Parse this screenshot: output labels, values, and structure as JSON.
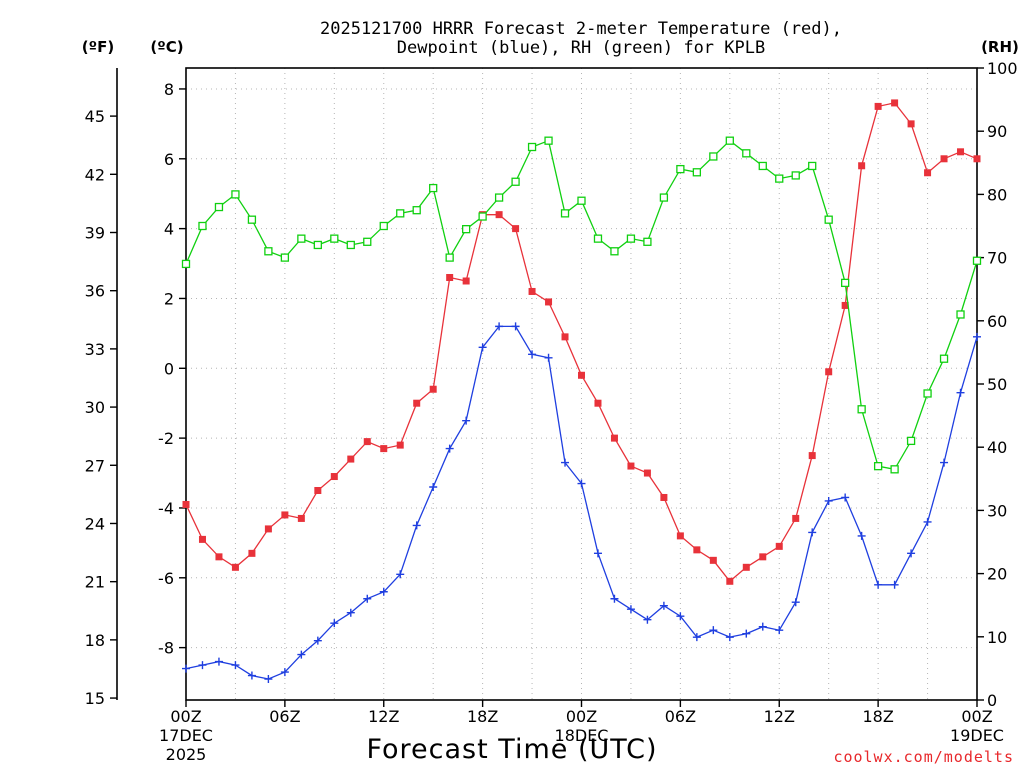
{
  "chart_data": {
    "type": "line",
    "title_line1": "2025121700 HRRR Forecast 2-meter Temperature (red),",
    "title_line2": "Dewpoint (blue), RH (green) for KPLB",
    "left_outer_unit": "(ºF)",
    "left_inner_unit": "(ºC)",
    "right_unit": "(RH)",
    "xlabel": "Forecast Time (UTC)",
    "credit": "coolwx.com/modelts",
    "x_range": [
      0,
      48
    ],
    "celsius_range": [
      -9.5,
      8.6
    ],
    "rh_range": [
      0,
      100
    ],
    "celsius_ticks": [
      "8",
      "6",
      "4",
      "2",
      "0",
      "-2",
      "-4",
      "-6",
      "-8"
    ],
    "fahrenheit_ticks": [
      "45",
      "42",
      "39",
      "36",
      "33",
      "30",
      "27",
      "24",
      "21",
      "18",
      "15"
    ],
    "rh_ticks": [
      "100",
      "90",
      "80",
      "70",
      "60",
      "50",
      "40",
      "30",
      "20",
      "10",
      "0"
    ],
    "x_ticks": [
      {
        "x": 0,
        "label": "00Z"
      },
      {
        "x": 6,
        "label": "06Z"
      },
      {
        "x": 12,
        "label": "12Z"
      },
      {
        "x": 18,
        "label": "18Z"
      },
      {
        "x": 24,
        "label": "00Z"
      },
      {
        "x": 30,
        "label": "06Z"
      },
      {
        "x": 36,
        "label": "12Z"
      },
      {
        "x": 42,
        "label": "18Z"
      },
      {
        "x": 48,
        "label": "00Z"
      }
    ],
    "date_labels": [
      {
        "x": 0,
        "line1": "17DEC",
        "line2": "2025"
      },
      {
        "x": 24,
        "line1": "18DEC",
        "line2": ""
      },
      {
        "x": 48,
        "line1": "19DEC",
        "line2": ""
      }
    ],
    "grid": true,
    "series": [
      {
        "name": "Temperature",
        "color": "#e8323a",
        "marker": "filled-square",
        "axis": "celsius",
        "x": [
          0,
          1,
          2,
          3,
          4,
          5,
          6,
          7,
          8,
          9,
          10,
          11,
          12,
          13,
          14,
          15,
          16,
          17,
          18,
          19,
          20,
          21,
          22,
          23,
          24,
          25,
          26,
          27,
          28,
          29,
          30,
          31,
          32,
          33,
          34,
          35,
          36,
          37,
          38,
          39,
          40,
          41,
          42,
          43,
          44,
          45,
          46,
          47,
          48
        ],
        "values": [
          -3.9,
          -4.9,
          -5.4,
          -5.7,
          -5.3,
          -4.6,
          -4.2,
          -4.3,
          -3.5,
          -3.1,
          -2.6,
          -2.1,
          -2.3,
          -2.2,
          -1.0,
          -0.6,
          2.6,
          2.5,
          4.4,
          4.4,
          4.0,
          2.2,
          1.9,
          0.9,
          -0.2,
          -1.0,
          -2.0,
          -2.8,
          -3.0,
          -3.7,
          -4.8,
          -5.2,
          -5.5,
          -6.1,
          -5.7,
          -5.4,
          -5.1,
          -4.3,
          -2.5,
          -0.1,
          1.8,
          5.8,
          7.5,
          7.6,
          7.0,
          5.6,
          6.0,
          6.2,
          6.0
        ]
      },
      {
        "name": "Dewpoint",
        "color": "#1f3fe0",
        "marker": "plus",
        "axis": "celsius",
        "x": [
          0,
          1,
          2,
          3,
          4,
          5,
          6,
          7,
          8,
          9,
          10,
          11,
          12,
          13,
          14,
          15,
          16,
          17,
          18,
          19,
          20,
          21,
          22,
          23,
          24,
          25,
          26,
          27,
          28,
          29,
          30,
          31,
          32,
          33,
          34,
          35,
          36,
          37,
          38,
          39,
          40,
          41,
          42,
          43,
          44,
          45,
          46,
          47,
          48
        ],
        "values": [
          -8.6,
          -8.5,
          -8.4,
          -8.5,
          -8.8,
          -8.9,
          -8.7,
          -8.2,
          -7.8,
          -7.3,
          -7.0,
          -6.6,
          -6.4,
          -5.9,
          -4.5,
          -3.4,
          -2.3,
          -1.5,
          0.6,
          1.2,
          1.2,
          0.4,
          0.3,
          -2.7,
          -3.3,
          -5.3,
          -6.6,
          -6.9,
          -7.2,
          -6.8,
          -7.1,
          -7.7,
          -7.5,
          -7.7,
          -7.6,
          -7.4,
          -7.5,
          -6.7,
          -4.7,
          -3.8,
          -3.7,
          -4.8,
          -6.2,
          -6.2,
          -5.3,
          -4.4,
          -2.7,
          -0.7,
          0.9
        ]
      },
      {
        "name": "RH",
        "color": "#10d010",
        "marker": "open-square",
        "axis": "rh",
        "x": [
          0,
          1,
          2,
          3,
          4,
          5,
          6,
          7,
          8,
          9,
          10,
          11,
          12,
          13,
          14,
          15,
          16,
          17,
          18,
          19,
          20,
          21,
          22,
          23,
          24,
          25,
          26,
          27,
          28,
          29,
          30,
          31,
          32,
          33,
          34,
          35,
          36,
          37,
          38,
          39,
          40,
          41,
          42,
          43,
          44,
          45,
          46,
          47,
          48
        ],
        "values": [
          69,
          75,
          78,
          80,
          76,
          71,
          70,
          73,
          72,
          73,
          72,
          72.5,
          75,
          77,
          77.5,
          81,
          70,
          74.5,
          76.5,
          79.5,
          82,
          87.5,
          88.5,
          77,
          79,
          73,
          71,
          73,
          72.5,
          79.5,
          84,
          83.5,
          86,
          88.5,
          86.5,
          84.5,
          82.5,
          83,
          84.5,
          76,
          66,
          46,
          37,
          36.5,
          41,
          48.5,
          54,
          61,
          69.5
        ]
      }
    ]
  }
}
